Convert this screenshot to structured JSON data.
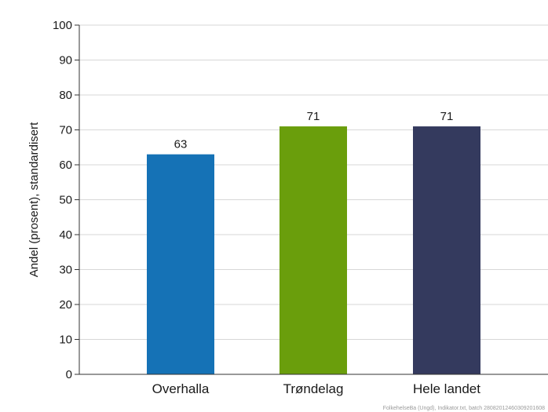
{
  "chart_data": {
    "type": "bar",
    "title": "",
    "xlabel": "",
    "ylabel": "Andel (prosent), standardisert",
    "categories": [
      "Overhalla",
      "Trøndelag",
      "Hele landet"
    ],
    "values": [
      63,
      71,
      71
    ],
    "data_labels": [
      "63",
      "71",
      "71"
    ],
    "colors": [
      "#1572b6",
      "#6a9e0c",
      "#343a5e"
    ],
    "ylim": [
      0,
      100
    ],
    "yticks": [
      "0",
      "10",
      "20",
      "30",
      "40",
      "50",
      "60",
      "70",
      "80",
      "90",
      "100"
    ],
    "grid": true,
    "legend": "none"
  },
  "footer": {
    "source": "FolkehelseBa (Ungd), Indikator.txt, batch 28082012460309201608"
  }
}
